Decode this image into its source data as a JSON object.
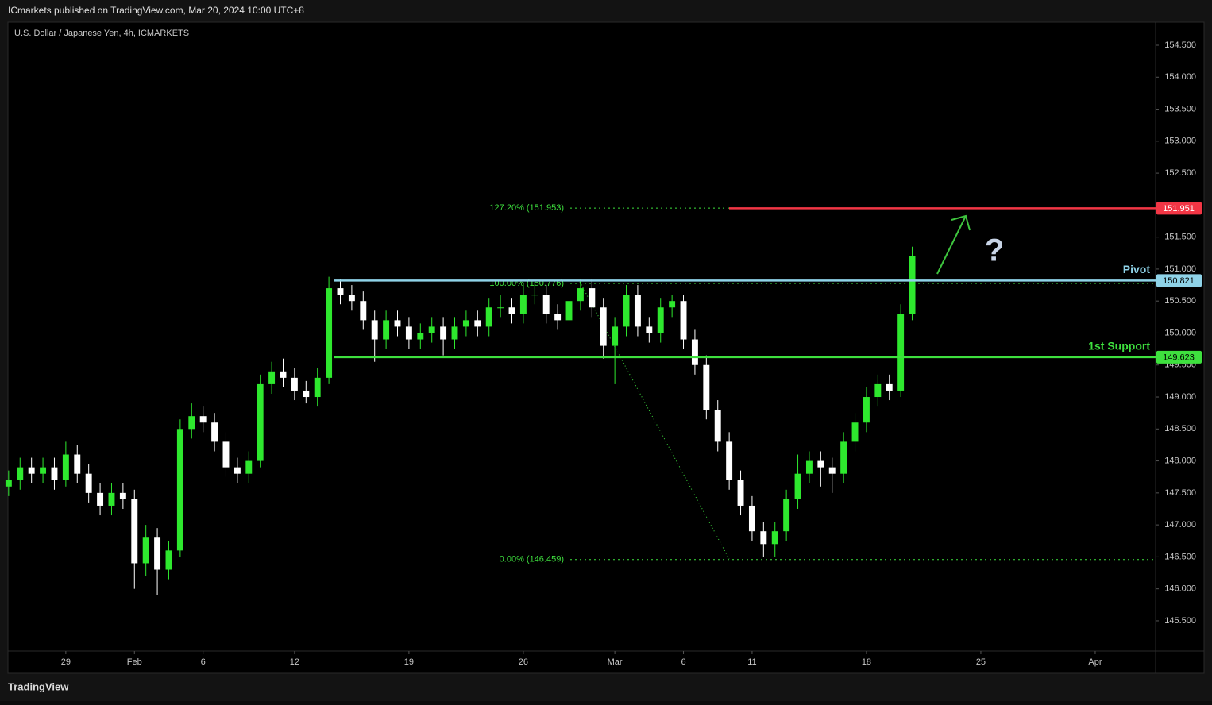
{
  "header": {
    "publisher": "ICmarkets published on TradingView.com, Mar 20, 2024 10:00 UTC+8"
  },
  "footer": {
    "brand": "TradingView"
  },
  "chart_data": {
    "type": "candlestick",
    "title": "U.S. Dollar / Japanese Yen, 4h, ICMARKETS",
    "up_color": "#2ee82e",
    "down_color": "#ffffff",
    "x": [
      -2.5,
      -2,
      -1.5,
      -1,
      -0.5,
      0,
      0.5,
      1,
      1.5,
      2,
      2.5,
      3,
      3.5,
      4,
      4.5,
      5,
      5.5,
      6,
      6.5,
      7,
      7.5,
      8,
      8.5,
      9,
      9.5,
      10,
      10.5,
      11,
      11.5,
      12,
      12.5,
      13,
      13.5,
      14,
      14.5,
      15,
      15.5,
      16,
      16.5,
      17,
      17.5,
      18,
      18.5,
      19,
      19.5,
      20,
      20.5,
      21,
      21.5,
      22,
      22.5,
      23,
      23.5,
      24,
      24.5,
      25,
      25.5,
      26,
      26.5,
      27,
      27.5,
      28,
      28.5,
      29,
      29.5,
      30,
      30.5,
      31,
      31.5,
      32,
      32.5,
      33,
      33.5,
      34,
      34.5,
      35,
      35.5,
      36,
      36.5,
      37
    ],
    "open": [
      147.6,
      147.7,
      147.9,
      147.8,
      147.9,
      147.7,
      148.1,
      147.8,
      147.5,
      147.3,
      147.5,
      147.4,
      146.4,
      146.8,
      146.3,
      146.6,
      148.5,
      148.7,
      148.6,
      148.3,
      147.9,
      147.8,
      148.0,
      149.2,
      149.4,
      149.3,
      149.1,
      149.0,
      149.3,
      150.7,
      150.6,
      150.5,
      150.2,
      149.9,
      150.2,
      150.1,
      149.9,
      150.0,
      150.1,
      149.9,
      150.1,
      150.2,
      150.1,
      150.4,
      150.4,
      150.3,
      150.6,
      150.6,
      150.3,
      150.2,
      150.5,
      150.7,
      150.4,
      149.8,
      150.1,
      150.6,
      150.1,
      150.0,
      150.4,
      150.5,
      149.9,
      149.5,
      148.8,
      148.3,
      147.7,
      147.3,
      146.9,
      146.7,
      146.9,
      147.4,
      147.8,
      148.0,
      147.9,
      147.8,
      148.3,
      148.6,
      149.0,
      149.2,
      149.1,
      150.3
    ],
    "high": [
      147.85,
      148.05,
      148.05,
      148.05,
      148.05,
      148.3,
      148.25,
      147.95,
      147.65,
      147.65,
      147.65,
      147.55,
      147.0,
      146.95,
      146.75,
      148.65,
      148.9,
      148.85,
      148.75,
      148.45,
      148.05,
      148.15,
      149.35,
      149.55,
      149.6,
      149.45,
      149.25,
      149.45,
      150.88,
      150.85,
      150.75,
      150.65,
      150.35,
      150.35,
      150.35,
      150.25,
      150.15,
      150.25,
      150.25,
      150.25,
      150.35,
      150.35,
      150.55,
      150.6,
      150.55,
      150.75,
      150.8,
      150.75,
      150.45,
      150.65,
      150.85,
      150.85,
      150.55,
      150.25,
      150.75,
      150.75,
      150.25,
      150.55,
      150.6,
      150.6,
      150.05,
      149.65,
      148.95,
      148.45,
      147.85,
      147.45,
      147.05,
      147.05,
      147.55,
      148.1,
      148.15,
      148.15,
      148.05,
      148.45,
      148.75,
      149.15,
      149.35,
      149.35,
      150.45,
      151.35
    ],
    "low": [
      147.45,
      147.55,
      147.65,
      147.65,
      147.55,
      147.6,
      147.65,
      147.35,
      147.15,
      147.15,
      147.25,
      146.0,
      146.2,
      145.9,
      146.15,
      146.5,
      148.35,
      148.45,
      148.15,
      147.75,
      147.65,
      147.65,
      147.9,
      149.05,
      149.15,
      148.95,
      148.9,
      148.85,
      149.2,
      150.45,
      150.35,
      150.05,
      149.55,
      149.75,
      149.95,
      149.75,
      149.75,
      149.85,
      149.65,
      149.75,
      149.95,
      149.95,
      149.95,
      150.25,
      150.15,
      150.15,
      150.45,
      150.15,
      150.05,
      150.05,
      150.35,
      150.25,
      149.6,
      149.2,
      149.95,
      149.95,
      149.85,
      149.85,
      150.25,
      149.75,
      149.35,
      148.65,
      148.15,
      147.55,
      147.15,
      146.75,
      146.5,
      146.5,
      146.75,
      147.25,
      147.65,
      147.6,
      147.5,
      147.65,
      148.15,
      148.45,
      148.85,
      148.95,
      149.0,
      150.2
    ],
    "close": [
      147.7,
      147.9,
      147.8,
      147.9,
      147.7,
      148.1,
      147.8,
      147.5,
      147.3,
      147.5,
      147.4,
      146.4,
      146.8,
      146.3,
      146.6,
      148.5,
      148.7,
      148.6,
      148.3,
      147.9,
      147.8,
      148.0,
      149.2,
      149.4,
      149.3,
      149.1,
      149.0,
      149.3,
      150.7,
      150.6,
      150.5,
      150.2,
      149.9,
      150.2,
      150.1,
      149.9,
      150.0,
      150.1,
      149.9,
      150.1,
      150.2,
      150.1,
      150.4,
      150.4,
      150.3,
      150.6,
      150.6,
      150.3,
      150.2,
      150.5,
      150.7,
      150.4,
      149.8,
      150.1,
      150.6,
      150.1,
      150.0,
      150.4,
      150.5,
      149.9,
      149.5,
      148.8,
      148.3,
      147.7,
      147.3,
      146.9,
      146.7,
      146.9,
      147.4,
      147.8,
      148.0,
      147.9,
      147.8,
      148.3,
      148.6,
      149.0,
      149.2,
      149.1,
      150.3,
      151.2
    ],
    "xlim": [
      -2.53,
      47.64
    ],
    "xticks": [
      {
        "value": 0,
        "label": "29"
      },
      {
        "value": 3,
        "label": "Feb"
      },
      {
        "value": 6,
        "label": "6"
      },
      {
        "value": 10,
        "label": "12"
      },
      {
        "value": 15,
        "label": "19"
      },
      {
        "value": 20,
        "label": "26"
      },
      {
        "value": 24,
        "label": "Mar"
      },
      {
        "value": 27,
        "label": "6"
      },
      {
        "value": 30,
        "label": "11"
      },
      {
        "value": 35,
        "label": "18"
      },
      {
        "value": 40,
        "label": "25"
      },
      {
        "value": 45,
        "label": "Apr"
      }
    ],
    "ylim": [
      144.68,
      154.86
    ],
    "yticks": [
      {
        "value": 145.5,
        "label": "145.500"
      },
      {
        "value": 146,
        "label": "146.000"
      },
      {
        "value": 146.5,
        "label": "146.500"
      },
      {
        "value": 147,
        "label": "147.000"
      },
      {
        "value": 147.5,
        "label": "147.500"
      },
      {
        "value": 148,
        "label": "148.000"
      },
      {
        "value": 148.5,
        "label": "148.500"
      },
      {
        "value": 149,
        "label": "149.000"
      },
      {
        "value": 149.5,
        "label": "149.500"
      },
      {
        "value": 150,
        "label": "150.000"
      },
      {
        "value": 150.5,
        "label": "150.500"
      },
      {
        "value": 151,
        "label": "151.000"
      },
      {
        "value": 151.5,
        "label": "151.500"
      },
      {
        "value": 152,
        "label": "152.000"
      },
      {
        "value": 152.5,
        "label": "152.500"
      },
      {
        "value": 153,
        "label": "153.000"
      },
      {
        "value": 153.5,
        "label": "153.500"
      },
      {
        "value": 154,
        "label": "154.000"
      },
      {
        "value": 154.5,
        "label": "154.500"
      }
    ],
    "levels": [
      {
        "value": 151.951,
        "color": "#f23645"
      },
      {
        "name": "Pivot",
        "value": 150.821,
        "color": "#8fd3e8"
      },
      {
        "name": "1st Support",
        "value": 149.623,
        "color": "#3ee03e"
      }
    ],
    "fib": [
      {
        "label": "127.20% (151.953)",
        "value": 151.953
      },
      {
        "label": "100.00% (150.776)",
        "value": 150.776
      },
      {
        "label": "0.00% (146.459)",
        "value": 146.459
      }
    ],
    "annotation": "?"
  }
}
